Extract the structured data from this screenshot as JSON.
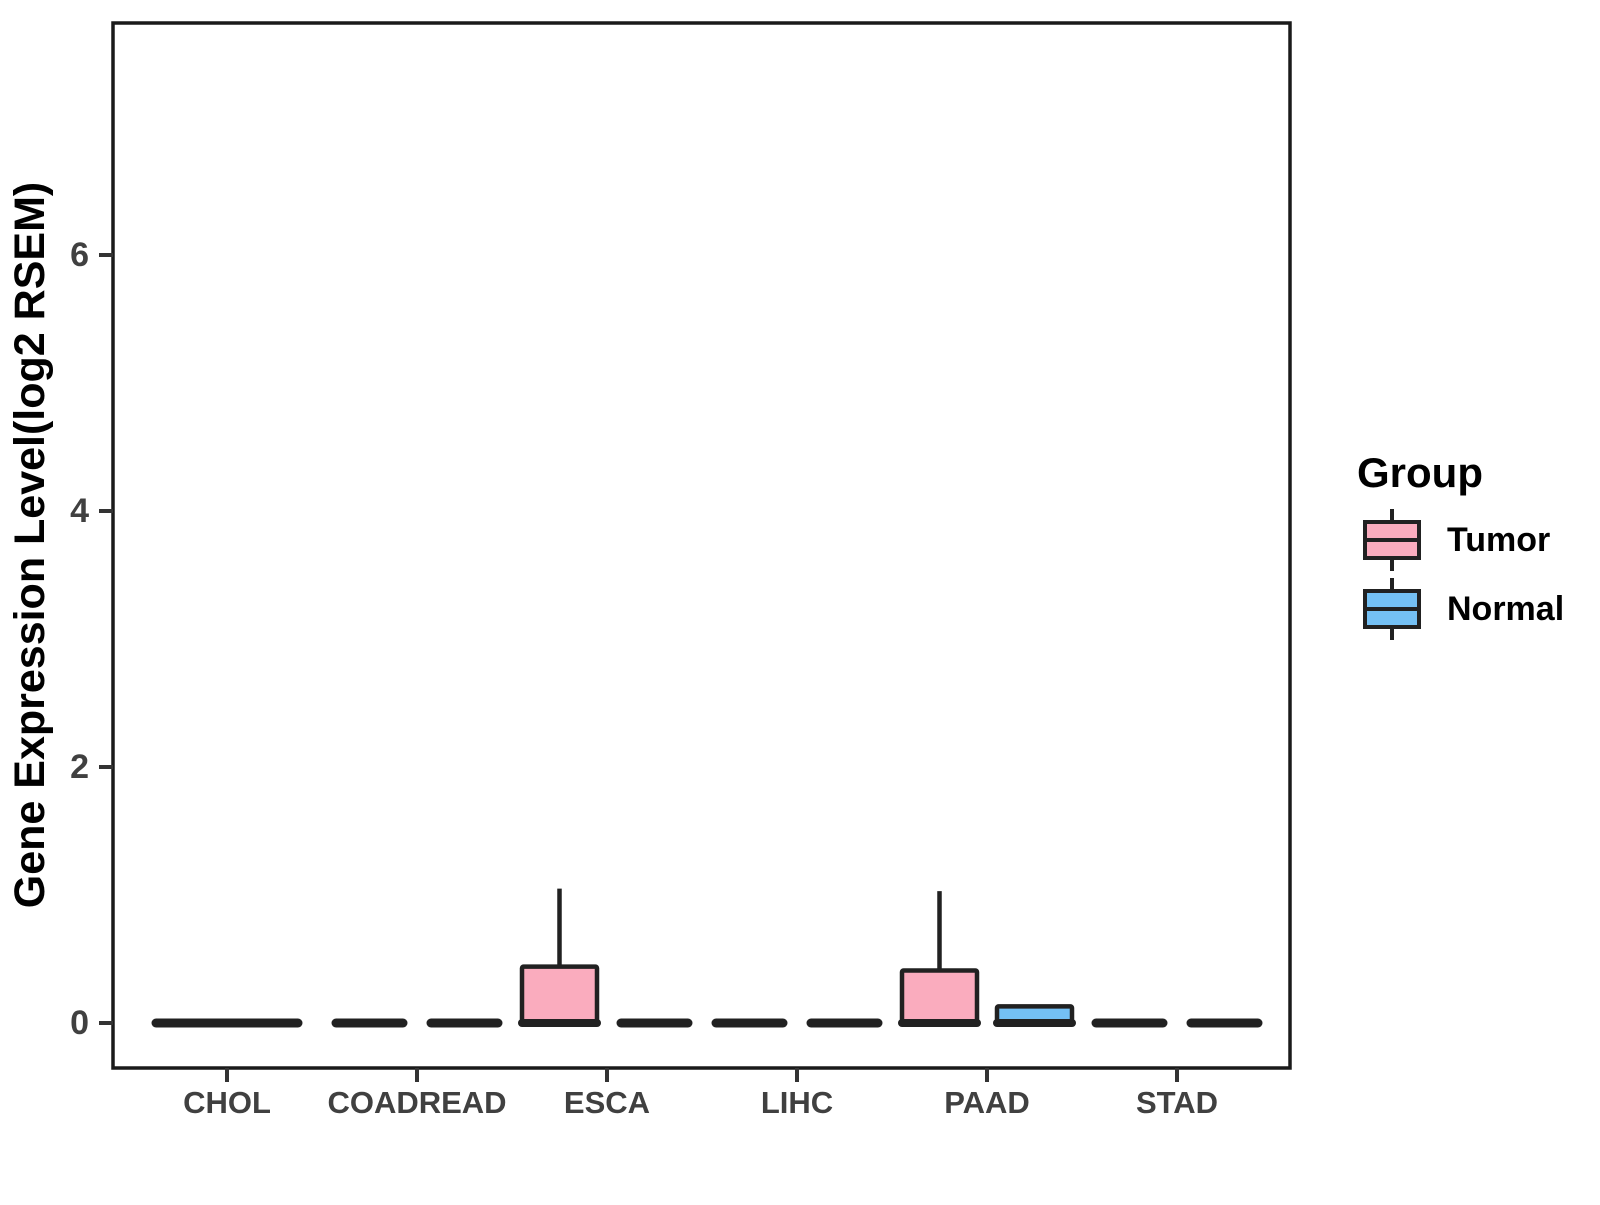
{
  "chart_data": {
    "type": "boxplot",
    "title": "",
    "xlabel": "",
    "ylabel": "Gene Expression Level(log2 RSEM)",
    "legend_title": "Group",
    "legend_position": "right",
    "grid": false,
    "y_ticks": [
      0,
      2,
      4,
      6
    ],
    "ylim": [
      -0.35,
      7.8
    ],
    "categories": [
      "CHOL",
      "COADREAD",
      "ESCA",
      "LIHC",
      "PAAD",
      "STAD"
    ],
    "groups": [
      {
        "name": "Tumor",
        "color": "#FAACBE"
      },
      {
        "name": "Normal",
        "color": "#74C0F4"
      }
    ],
    "stroke_color": "#212121",
    "axis_color": "#333333",
    "boxes": [
      {
        "category": "CHOL",
        "group": "Tumor",
        "min": 0,
        "q1": 0,
        "median": 0,
        "q3": 0,
        "max": 0,
        "full_width": true
      },
      {
        "category": "COADREAD",
        "group": "Tumor",
        "min": 0,
        "q1": 0,
        "median": 0,
        "q3": 0,
        "max": 0
      },
      {
        "category": "COADREAD",
        "group": "Normal",
        "min": 0,
        "q1": 0,
        "median": 0,
        "q3": 0,
        "max": 0
      },
      {
        "category": "ESCA",
        "group": "Tumor",
        "min": 0,
        "q1": 0,
        "median": 0,
        "q3": 0.44,
        "max": 1.05
      },
      {
        "category": "ESCA",
        "group": "Normal",
        "min": 0,
        "q1": 0,
        "median": 0,
        "q3": 0,
        "max": 0
      },
      {
        "category": "LIHC",
        "group": "Tumor",
        "min": 0,
        "q1": 0,
        "median": 0,
        "q3": 0,
        "max": 0
      },
      {
        "category": "LIHC",
        "group": "Normal",
        "min": 0,
        "q1": 0,
        "median": 0,
        "q3": 0,
        "max": 0
      },
      {
        "category": "PAAD",
        "group": "Tumor",
        "min": 0,
        "q1": 0,
        "median": 0,
        "q3": 0.41,
        "max": 1.03
      },
      {
        "category": "PAAD",
        "group": "Normal",
        "min": 0,
        "q1": 0,
        "median": 0,
        "q3": 0.13,
        "max": 0.13
      },
      {
        "category": "STAD",
        "group": "Tumor",
        "min": 0,
        "q1": 0,
        "median": 0,
        "q3": 0,
        "max": 0
      },
      {
        "category": "STAD",
        "group": "Normal",
        "min": 0,
        "q1": 0,
        "median": 0,
        "q3": 0,
        "max": 0
      }
    ]
  }
}
